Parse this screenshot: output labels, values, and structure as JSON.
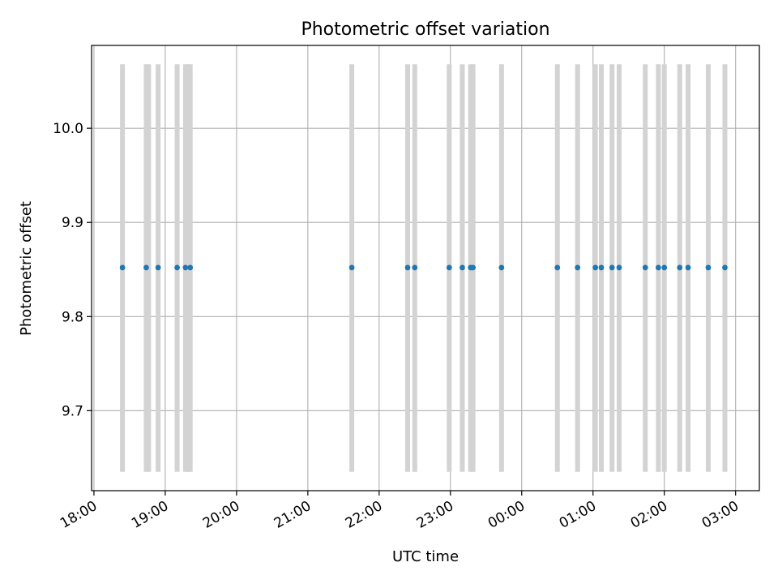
{
  "chart_data": {
    "type": "scatter",
    "title": "Photometric offset variation",
    "xlabel": "UTC time",
    "ylabel": "Photometric offset",
    "x_axis_kind": "time (HH:MM, UTC), spanning midnight",
    "xlim": [
      "17:58",
      "03:20"
    ],
    "ylim": [
      9.615,
      10.088
    ],
    "xticks": [
      "18:00",
      "19:00",
      "20:00",
      "21:00",
      "22:00",
      "23:00",
      "00:00",
      "01:00",
      "02:00",
      "03:00"
    ],
    "yticks": [
      9.7,
      9.8,
      9.9,
      10.0
    ],
    "ytick_labels": [
      "9.7",
      "9.8",
      "9.9",
      "10.0"
    ],
    "grid": true,
    "series": [
      {
        "kind": "points",
        "color": "#1f77b4",
        "x": [
          "18:24",
          "18:44",
          "18:54",
          "19:10",
          "19:17",
          "19:21",
          "21:37",
          "22:24",
          "22:30",
          "22:59",
          "23:10",
          "23:17",
          "23:19",
          "23:43",
          "00:30",
          "00:47",
          "01:02",
          "01:07",
          "01:16",
          "01:22",
          "01:44",
          "01:55",
          "02:00",
          "02:13",
          "02:20",
          "02:37",
          "02:51"
        ],
        "y": [
          9.852,
          9.852,
          9.852,
          9.852,
          9.852,
          9.852,
          9.852,
          9.852,
          9.852,
          9.852,
          9.852,
          9.852,
          9.852,
          9.852,
          9.852,
          9.852,
          9.852,
          9.852,
          9.852,
          9.852,
          9.852,
          9.852,
          9.852,
          9.852,
          9.852,
          9.852,
          9.852
        ]
      },
      {
        "kind": "vertical-lines",
        "color": "#d3d3d3",
        "x": [
          "18:24",
          "18:44",
          "18:46",
          "18:54",
          "19:10",
          "19:17",
          "19:19",
          "19:21",
          "21:37",
          "22:24",
          "22:30",
          "22:59",
          "23:10",
          "23:17",
          "23:19",
          "23:43",
          "00:30",
          "00:47",
          "01:02",
          "01:07",
          "01:16",
          "01:22",
          "01:44",
          "01:55",
          "02:00",
          "02:13",
          "02:20",
          "02:37",
          "02:51"
        ],
        "ymin": 9.635,
        "ymax": 10.068
      }
    ]
  }
}
